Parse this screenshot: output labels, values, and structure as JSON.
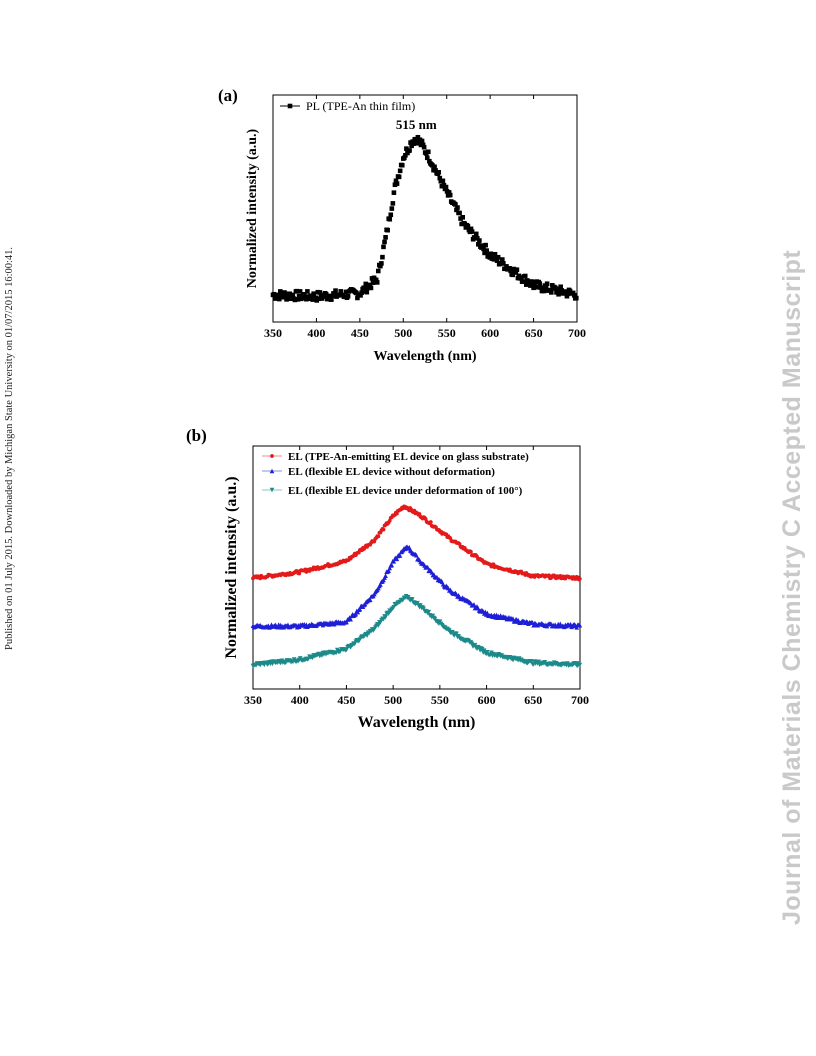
{
  "side_note": "Published on 01 July 2015. Downloaded by Michigan State University on 01/07/2015 16:00:41.",
  "watermark": "Journal of Materials Chemistry C Accepted Manuscript",
  "chart_data": [
    {
      "type": "scatter",
      "panel_label": "(a)",
      "xlabel": "Wavelength (nm)",
      "ylabel": "Normalized intensity (a.u.)",
      "xlim": [
        350,
        700
      ],
      "xticks": [
        350,
        400,
        450,
        500,
        550,
        600,
        650,
        700
      ],
      "yticks_shown": false,
      "legend_placement": "top-left",
      "annotation": {
        "text": "515 nm",
        "x": 515
      },
      "series": [
        {
          "name": "PL (TPE-An thin film)",
          "color": "#000000",
          "marker": "square",
          "x": [
            350,
            400,
            450,
            470,
            480,
            490,
            500,
            510,
            515,
            520,
            530,
            550,
            570,
            600,
            650,
            700
          ],
          "y": [
            0.02,
            0.01,
            0.03,
            0.12,
            0.38,
            0.68,
            0.88,
            0.98,
            1.0,
            0.97,
            0.88,
            0.66,
            0.46,
            0.27,
            0.08,
            0.02
          ]
        }
      ]
    },
    {
      "type": "scatter",
      "panel_label": "(b)",
      "xlabel": "Wavelength (nm)",
      "ylabel": "Normalized intensity (a.u.)",
      "xlim": [
        350,
        700
      ],
      "xticks": [
        350,
        400,
        450,
        500,
        550,
        600,
        650,
        700
      ],
      "yticks_shown": false,
      "legend_placement": "top-left",
      "series": [
        {
          "name": "EL (TPE-An-emitting EL device on glass substrate)",
          "color": "#e41a1a",
          "marker": "circle",
          "x": [
            350,
            400,
            450,
            480,
            500,
            512,
            530,
            560,
            600,
            650,
            700
          ],
          "y": [
            0.0,
            0.06,
            0.17,
            0.38,
            0.62,
            0.72,
            0.62,
            0.4,
            0.14,
            0.02,
            0.0
          ]
        },
        {
          "name": "EL (flexible EL device without deformation)",
          "color": "#1f1fd6",
          "marker": "triangle-up",
          "x": [
            350,
            400,
            450,
            480,
            500,
            515,
            530,
            560,
            600,
            650,
            700
          ],
          "y": [
            0.0,
            0.0,
            0.04,
            0.32,
            0.64,
            0.8,
            0.64,
            0.36,
            0.12,
            0.02,
            0.0
          ]
        },
        {
          "name": "EL (flexible EL device under deformation of 100°)",
          "color": "#1d8a8a",
          "marker": "triangle-down",
          "x": [
            350,
            400,
            450,
            480,
            500,
            515,
            530,
            560,
            600,
            650,
            700
          ],
          "y": [
            0.0,
            0.05,
            0.16,
            0.36,
            0.58,
            0.68,
            0.58,
            0.34,
            0.12,
            0.02,
            0.0
          ]
        }
      ]
    }
  ]
}
